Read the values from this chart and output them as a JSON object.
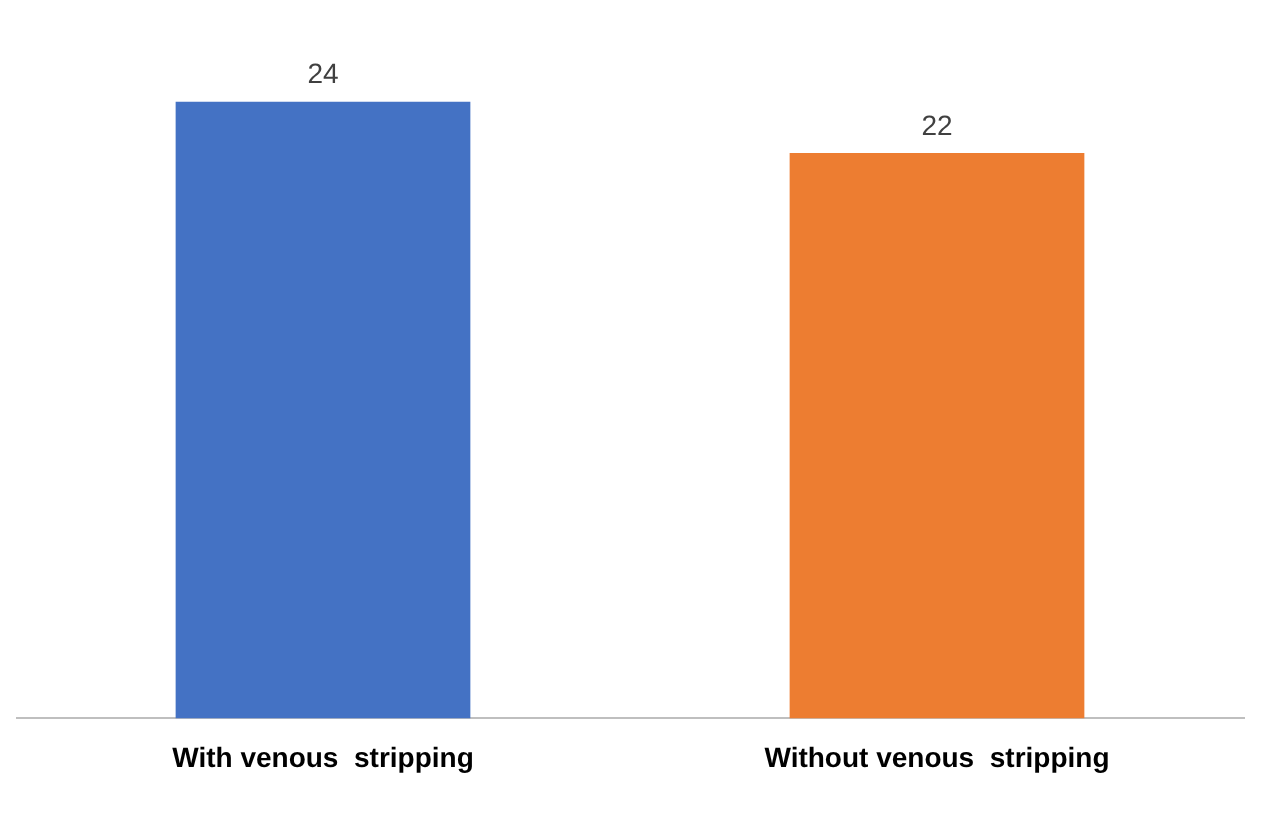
{
  "chart_data": {
    "type": "bar",
    "categories": [
      "With venous  stripping",
      "Without venous  stripping"
    ],
    "values": [
      24,
      22
    ],
    "colors": [
      "#4472c4",
      "#ed7d31"
    ],
    "data_labels": true,
    "legend": false
  }
}
